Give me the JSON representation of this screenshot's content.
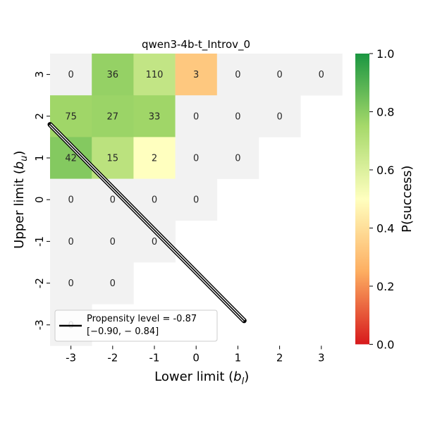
{
  "chart_data": {
    "type": "heatmap",
    "title": "qwen3-4b-t_Introv_0",
    "xlabel": "Lower limit (b_l)",
    "ylabel": "Upper limit (b_u)",
    "x_categories": [
      "-3",
      "-2",
      "-1",
      "0",
      "1",
      "2",
      "3"
    ],
    "y_categories": [
      "3",
      "2",
      "1",
      "0",
      "-1",
      "-2",
      "-3"
    ],
    "cells": [
      {
        "x": "-3",
        "y": "3",
        "count": 0,
        "p_success": null
      },
      {
        "x": "-2",
        "y": "3",
        "count": 36,
        "p_success": 0.78
      },
      {
        "x": "-1",
        "y": "3",
        "count": 110,
        "p_success": 0.67
      },
      {
        "x": "0",
        "y": "3",
        "count": 3,
        "p_success": 0.33
      },
      {
        "x": "1",
        "y": "3",
        "count": 0,
        "p_success": null
      },
      {
        "x": "2",
        "y": "3",
        "count": 0,
        "p_success": null
      },
      {
        "x": "3",
        "y": "3",
        "count": 0,
        "p_success": null
      },
      {
        "x": "-3",
        "y": "2",
        "count": 75,
        "p_success": 0.76
      },
      {
        "x": "-2",
        "y": "2",
        "count": 27,
        "p_success": 0.77
      },
      {
        "x": "-1",
        "y": "2",
        "count": 33,
        "p_success": 0.76
      },
      {
        "x": "0",
        "y": "2",
        "count": 0,
        "p_success": null
      },
      {
        "x": "1",
        "y": "2",
        "count": 0,
        "p_success": null
      },
      {
        "x": "2",
        "y": "2",
        "count": 0,
        "p_success": null
      },
      {
        "x": "-3",
        "y": "1",
        "count": 42,
        "p_success": 0.81
      },
      {
        "x": "-2",
        "y": "1",
        "count": 15,
        "p_success": 0.69
      },
      {
        "x": "-1",
        "y": "1",
        "count": 2,
        "p_success": 0.5
      },
      {
        "x": "0",
        "y": "1",
        "count": 0,
        "p_success": null
      },
      {
        "x": "1",
        "y": "1",
        "count": 0,
        "p_success": null
      },
      {
        "x": "-3",
        "y": "0",
        "count": 0,
        "p_success": null
      },
      {
        "x": "-2",
        "y": "0",
        "count": 0,
        "p_success": null
      },
      {
        "x": "-1",
        "y": "0",
        "count": 0,
        "p_success": null
      },
      {
        "x": "0",
        "y": "0",
        "count": 0,
        "p_success": null
      },
      {
        "x": "-3",
        "y": "-1",
        "count": 0,
        "p_success": null
      },
      {
        "x": "-2",
        "y": "-1",
        "count": 0,
        "p_success": null
      },
      {
        "x": "-1",
        "y": "-1",
        "count": 0,
        "p_success": null
      },
      {
        "x": "-3",
        "y": "-2",
        "count": 0,
        "p_success": null
      },
      {
        "x": "-2",
        "y": "-2",
        "count": 0,
        "p_success": null
      },
      {
        "x": "-3",
        "y": "-3",
        "count": 0,
        "p_success": null
      }
    ],
    "colorbar": {
      "label": "P(success)",
      "range": [
        0.0,
        1.0
      ],
      "ticks": [
        "0.0",
        "0.2",
        "0.4",
        "0.6",
        "0.8",
        "1.0"
      ],
      "colormap": [
        "#d7191c",
        "#fdae61",
        "#ffffbf",
        "#a6d96a",
        "#1a9641"
      ]
    },
    "empty_cell_color": "#f2f2f2",
    "line": {
      "label": "Propensity level = -0.87",
      "interval_label": "[−0.90, − 0.84]",
      "points": [
        [
          -3.5,
          1.8
        ],
        [
          1.15,
          -2.9
        ]
      ],
      "color": "#000000"
    },
    "legend_position": "lower-left"
  }
}
